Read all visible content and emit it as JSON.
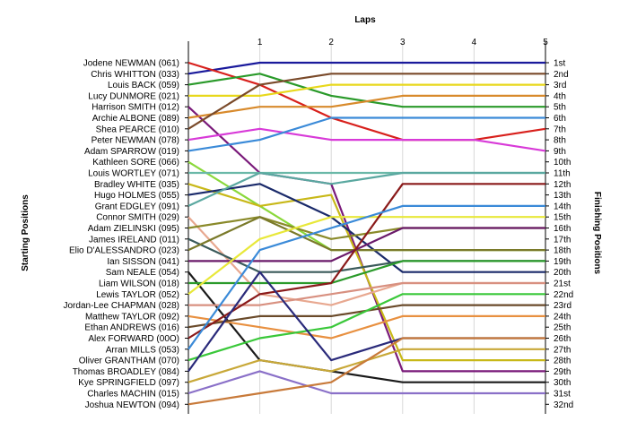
{
  "chart_data": {
    "type": "line",
    "title": "",
    "xlabel": "Laps",
    "ylabel_left": "Starting Positions",
    "ylabel_right": "Finishing Positions",
    "x": [
      0,
      1,
      2,
      3,
      4,
      5
    ],
    "x_tick_labels": [
      "1",
      "2",
      "3",
      "4",
      "5"
    ],
    "starting_labels": [
      "Jodene NEWMAN (061)",
      "Chris WHITTON (033)",
      "Louis BACK (059)",
      "Lucy DUNMORE (021)",
      "Harrison SMITH (012)",
      "Archie ALBONE (089)",
      "Shea PEARCE (010)",
      "Peter NEWMAN (078)",
      "Adam SPARROW (019)",
      "Kathleen SORE (066)",
      "Louis WORTLEY (071)",
      "Bradley WHITE (035)",
      "Hugo HOLMES (055)",
      "Grant EDGLEY (091)",
      "Connor SMITH (029)",
      "Adam ZIELINSKI (095)",
      "James IRELAND (011)",
      "Elio D'ALESSANDRO (023)",
      "Ian SISSON (041)",
      "Sam NEALE (054)",
      "Liam WILSON (018)",
      "Lewis TAYLOR (052)",
      "Jordan-Lee CHAPMAN (028)",
      "Matthew TAYLOR (092)",
      "Ethan ANDREWS (016)",
      "Alex FORWARD (00O)",
      "Arran MILLS (053)",
      "Oliver GRANTHAM (070)",
      "Thomas BROADLEY (084)",
      "Kye SPRINGFIELD (097)",
      "Charles MACHIN (015)",
      "Joshua NEWTON (094)"
    ],
    "finishing_labels": [
      "1st",
      "2nd",
      "3rd",
      "4th",
      "5th",
      "6th",
      "7th",
      "8th",
      "9th",
      "10th",
      "11th",
      "12th",
      "13th",
      "14th",
      "15th",
      "16th",
      "17th",
      "18th",
      "19th",
      "20th",
      "21st",
      "22nd",
      "23rd",
      "24th",
      "25th",
      "26th",
      "27th",
      "28th",
      "29th",
      "30th",
      "31st",
      "32nd"
    ],
    "series": [
      {
        "values": [
          2,
          1,
          1,
          1,
          1,
          1
        ],
        "color": "#1a1a9c"
      },
      {
        "values": [
          1,
          3,
          6,
          8,
          8,
          7
        ],
        "color": "#d8201c"
      },
      {
        "values": [
          3,
          2,
          4,
          5,
          5,
          5
        ],
        "color": "#2a9a2a"
      },
      {
        "values": [
          4,
          4,
          3,
          3,
          3,
          3
        ],
        "color": "#e8d81c"
      },
      {
        "values": [
          5,
          11,
          12,
          29,
          29,
          29
        ],
        "color": "#7a1a7a"
      },
      {
        "values": [
          6,
          5,
          5,
          4,
          4,
          4
        ],
        "color": "#d88a2c"
      },
      {
        "values": [
          7,
          3,
          2,
          2,
          2,
          2
        ],
        "color": "#7a4a2a"
      },
      {
        "values": [
          8,
          7,
          8,
          8,
          8,
          9
        ],
        "color": "#d83ad8"
      },
      {
        "values": [
          9,
          8,
          6,
          6,
          6,
          6
        ],
        "color": "#3a8ad8"
      },
      {
        "values": [
          10,
          14,
          18,
          18,
          18,
          18
        ],
        "color": "#8ad83a"
      },
      {
        "values": [
          11,
          11,
          11,
          11,
          11,
          11
        ],
        "color": "#6ab8a8"
      },
      {
        "values": [
          12,
          14,
          13,
          28,
          28,
          28
        ],
        "color": "#c8b818"
      },
      {
        "values": [
          13,
          12,
          15,
          20,
          20,
          20
        ],
        "color": "#1a2a6a"
      },
      {
        "values": [
          14,
          11,
          12,
          11,
          11,
          11
        ],
        "color": "#5aa8a0"
      },
      {
        "values": [
          15,
          22,
          23,
          21,
          21,
          21
        ],
        "color": "#e8a890"
      },
      {
        "values": [
          16,
          15,
          17,
          16,
          16,
          16
        ],
        "color": "#8a8a2a"
      },
      {
        "values": [
          17,
          20,
          20,
          19,
          19,
          19
        ],
        "color": "#3a5a5a"
      },
      {
        "values": [
          18,
          15,
          18,
          18,
          18,
          18
        ],
        "color": "#7a7a2a"
      },
      {
        "values": [
          19,
          19,
          19,
          16,
          16,
          16
        ],
        "color": "#6a1a6a"
      },
      {
        "values": [
          20,
          28,
          29,
          30,
          30,
          30
        ],
        "color": "#1a1a1a"
      },
      {
        "values": [
          21,
          21,
          21,
          19,
          19,
          19
        ],
        "color": "#2a9a2a"
      },
      {
        "values": [
          22,
          17,
          15,
          15,
          15,
          15
        ],
        "color": "#e8e83a"
      },
      {
        "values": [
          23,
          23,
          22,
          21,
          21,
          21
        ],
        "color": "#d89080"
      },
      {
        "values": [
          24,
          25,
          26,
          24,
          24,
          24
        ],
        "color": "#e89040"
      },
      {
        "values": [
          25,
          24,
          24,
          23,
          23,
          23
        ],
        "color": "#6a4a2a"
      },
      {
        "values": [
          26,
          22,
          21,
          12,
          12,
          12
        ],
        "color": "#8a1a1a"
      },
      {
        "values": [
          27,
          18,
          16,
          14,
          14,
          14
        ],
        "color": "#3a8ad8"
      },
      {
        "values": [
          28,
          26,
          25,
          22,
          22,
          22
        ],
        "color": "#3ac83a"
      },
      {
        "values": [
          29,
          20,
          28,
          26,
          26,
          26
        ],
        "color": "#2a2a7a"
      },
      {
        "values": [
          30,
          28,
          29,
          27,
          27,
          27
        ],
        "color": "#c8a838"
      },
      {
        "values": [
          31,
          29,
          31,
          31,
          31,
          31
        ],
        "color": "#8a70c8"
      },
      {
        "values": [
          32,
          31,
          30,
          26,
          26,
          26
        ],
        "color": "#c87a3a"
      }
    ]
  }
}
